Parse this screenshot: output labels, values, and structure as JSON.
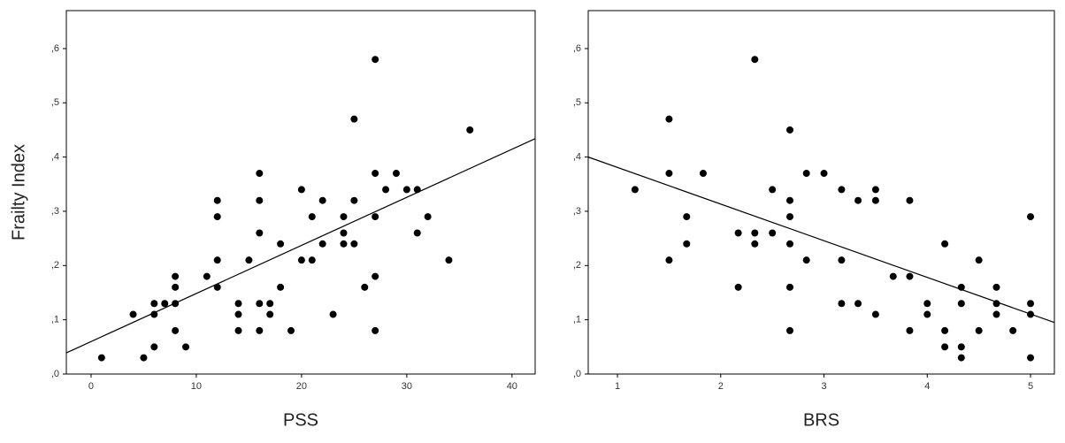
{
  "chart_data": [
    {
      "type": "scatter",
      "xlabel": "PSS",
      "ylabel": "Frailty Index",
      "color": "#000000",
      "xlim": [
        -2.35,
        42.2
      ],
      "ylim": [
        0,
        0.67
      ],
      "xticks": [
        0,
        10,
        20,
        30,
        40
      ],
      "yticks": [
        {
          "value": 0,
          "label": ",0"
        },
        {
          "value": 0.1,
          "label": ",1"
        },
        {
          "value": 0.2,
          "label": ",2"
        },
        {
          "value": 0.3,
          "label": ",3"
        },
        {
          "value": 0.4,
          "label": ",4"
        },
        {
          "value": 0.5,
          "label": ",5"
        },
        {
          "value": 0.6,
          "label": ",6"
        }
      ],
      "x": [
        1,
        4,
        5,
        6,
        6,
        6,
        7,
        8,
        8,
        8,
        8,
        9,
        11,
        12,
        12,
        12,
        12,
        14,
        14,
        14,
        15,
        16,
        16,
        16,
        16,
        16,
        17,
        17,
        18,
        18,
        19,
        20,
        20,
        21,
        21,
        22,
        22,
        23,
        24,
        24,
        24,
        25,
        25,
        25,
        26,
        27,
        27,
        27,
        27,
        27,
        28,
        29,
        30,
        31,
        31,
        32,
        34,
        36
      ],
      "y": [
        0.03,
        0.11,
        0.03,
        0.13,
        0.11,
        0.05,
        0.13,
        0.18,
        0.16,
        0.13,
        0.08,
        0.05,
        0.18,
        0.32,
        0.29,
        0.21,
        0.16,
        0.13,
        0.11,
        0.08,
        0.21,
        0.37,
        0.32,
        0.26,
        0.13,
        0.08,
        0.13,
        0.11,
        0.24,
        0.16,
        0.08,
        0.34,
        0.21,
        0.29,
        0.21,
        0.32,
        0.24,
        0.11,
        0.29,
        0.26,
        0.24,
        0.47,
        0.32,
        0.24,
        0.16,
        0.58,
        0.37,
        0.29,
        0.18,
        0.08,
        0.34,
        0.37,
        0.34,
        0.34,
        0.26,
        0.29,
        0.21,
        0.45
      ],
      "fit_line": {
        "x": [
          -2.35,
          42.2
        ],
        "y": [
          0.039,
          0.434
        ]
      }
    },
    {
      "type": "scatter",
      "xlabel": "BRS",
      "color": "#000000",
      "xlim": [
        0.717,
        5.231
      ],
      "ylim": [
        0,
        0.67
      ],
      "xticks": [
        1,
        2,
        3,
        4,
        5
      ],
      "yticks": [
        {
          "value": 0,
          "label": ",0"
        },
        {
          "value": 0.1,
          "label": ",1"
        },
        {
          "value": 0.2,
          "label": ",2"
        },
        {
          "value": 0.3,
          "label": ",3"
        },
        {
          "value": 0.4,
          "label": ",4"
        },
        {
          "value": 0.5,
          "label": ",5"
        },
        {
          "value": 0.6,
          "label": ",6"
        }
      ],
      "x": [
        1.17,
        1.5,
        1.5,
        1.5,
        1.67,
        1.67,
        1.83,
        2.17,
        2.17,
        2.33,
        2.33,
        2.33,
        2.5,
        2.5,
        2.67,
        2.67,
        2.67,
        2.67,
        2.67,
        2.67,
        2.83,
        2.83,
        3,
        3.17,
        3.17,
        3.17,
        3.33,
        3.33,
        3.5,
        3.5,
        3.5,
        3.67,
        3.83,
        3.83,
        3.83,
        4,
        4,
        4.17,
        4.17,
        4.17,
        4.33,
        4.33,
        4.33,
        4.33,
        4.5,
        4.5,
        4.67,
        4.67,
        4.67,
        4.83,
        5,
        5,
        5,
        5
      ],
      "y": [
        0.34,
        0.47,
        0.37,
        0.21,
        0.29,
        0.24,
        0.37,
        0.26,
        0.16,
        0.58,
        0.26,
        0.24,
        0.34,
        0.26,
        0.45,
        0.32,
        0.29,
        0.24,
        0.16,
        0.08,
        0.21,
        0.37,
        0.37,
        0.34,
        0.21,
        0.13,
        0.32,
        0.13,
        0.34,
        0.32,
        0.11,
        0.18,
        0.32,
        0.18,
        0.08,
        0.13,
        0.11,
        0.24,
        0.08,
        0.05,
        0.16,
        0.13,
        0.05,
        0.03,
        0.21,
        0.08,
        0.16,
        0.13,
        0.11,
        0.08,
        0.29,
        0.13,
        0.11,
        0.03
      ],
      "fit_line": {
        "x": [
          0.717,
          5.231
        ],
        "y": [
          0.4,
          0.095
        ]
      }
    }
  ]
}
